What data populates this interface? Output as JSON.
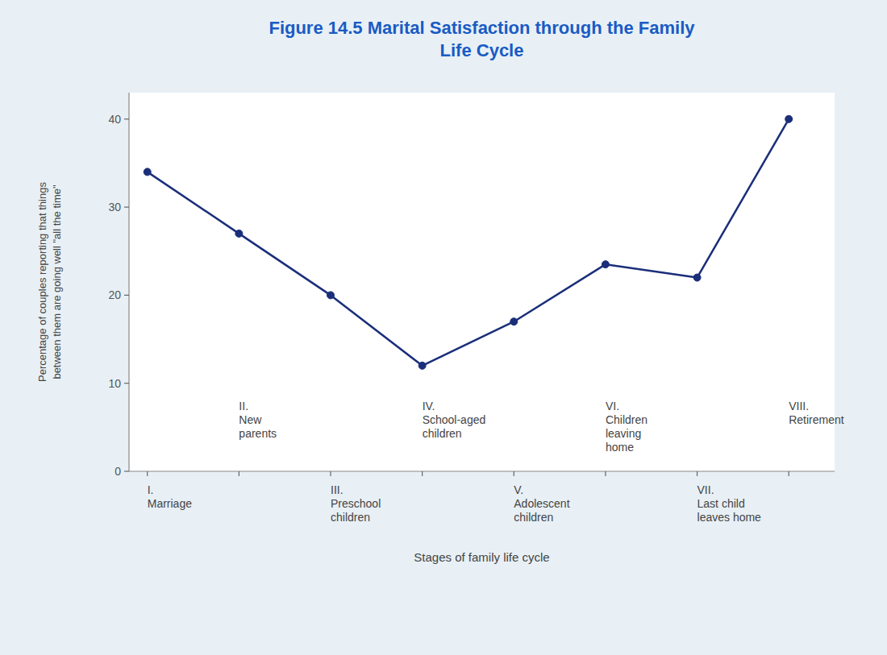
{
  "chart_data": {
    "type": "line",
    "title": "Figure 14.5 Marital Satisfaction through the Family\nLife Cycle",
    "x_label": "Stages of family life cycle",
    "y_label": "Percentage of couples reporting that things\nbetween them are going well \"all the time\"",
    "x": [
      0,
      1,
      2,
      3,
      4,
      5,
      6,
      7
    ],
    "values": [
      34,
      27,
      20,
      12,
      17,
      23.5,
      22,
      40
    ],
    "color": "#1a2e7a",
    "marker": "circle",
    "xlim": [
      -0.2,
      7.5
    ],
    "xticks": [
      0,
      1,
      2,
      3,
      4,
      5,
      6,
      7
    ],
    "ylim": [
      0,
      43
    ],
    "yticks": [
      0,
      10,
      20,
      30,
      40
    ],
    "grid": false,
    "tick_labels": "y",
    "annotations": [
      {
        "text": "I.\nMarriage",
        "x": 0
      },
      {
        "text": "III.\nPreschool\nchildren",
        "x": 2
      },
      {
        "text": "V.\nAdolescent\nchildren",
        "x": 4
      },
      {
        "text": "VII.\nLast child\nleaves home",
        "x": 6
      },
      {
        "text": "II.\nNew\nparents",
        "x": 1,
        "y": 8.0
      },
      {
        "text": "IV.\nSchool-aged\nchildren",
        "x": 3,
        "y": 8.0
      },
      {
        "text": "VI.\nChildren\nleaving\nhome",
        "x": 5,
        "y": 8.0
      },
      {
        "text": "VIII.\nRetirement",
        "x": 7,
        "y": 8.0
      }
    ]
  }
}
